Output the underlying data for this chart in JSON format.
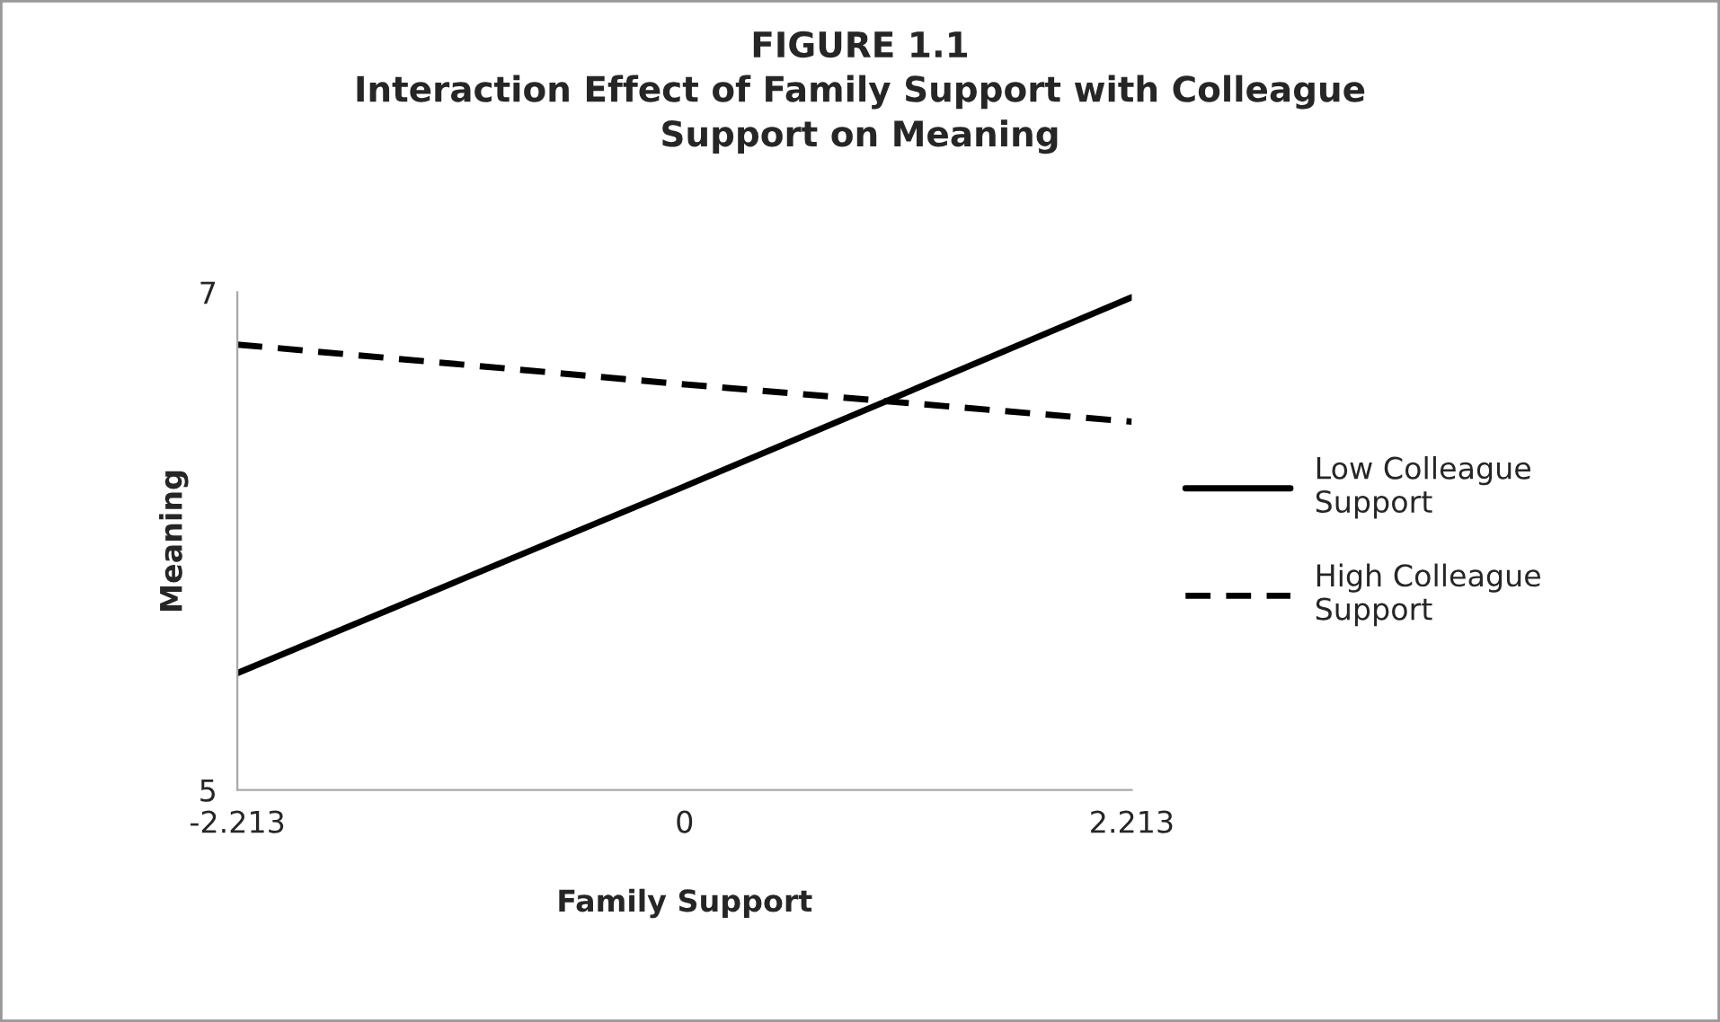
{
  "chart_data": {
    "type": "line",
    "title": "FIGURE 1.1\nInteraction Effect of Family Support with Colleague\nSupport on Meaning",
    "xlabel": "Family Support",
    "ylabel": "Meaning",
    "x": [
      -2.213,
      0,
      2.213
    ],
    "series": [
      {
        "name": "Low Colleague\nSupport",
        "color": "#000000",
        "values": [
          5.47,
          6.22,
          6.98
        ],
        "line_style": "solid"
      },
      {
        "name": "High Colleague\nSupport",
        "color": "#000000",
        "values": [
          6.79,
          6.63,
          6.48
        ],
        "line_style": "dashed"
      }
    ],
    "xlim": [
      -2.213,
      2.213
    ],
    "ylim": [
      5,
      7
    ],
    "xticks": [
      -2.213,
      0,
      2.213
    ],
    "yticks": [
      5,
      7
    ],
    "grid": false,
    "legend": "right",
    "marker": "none"
  }
}
